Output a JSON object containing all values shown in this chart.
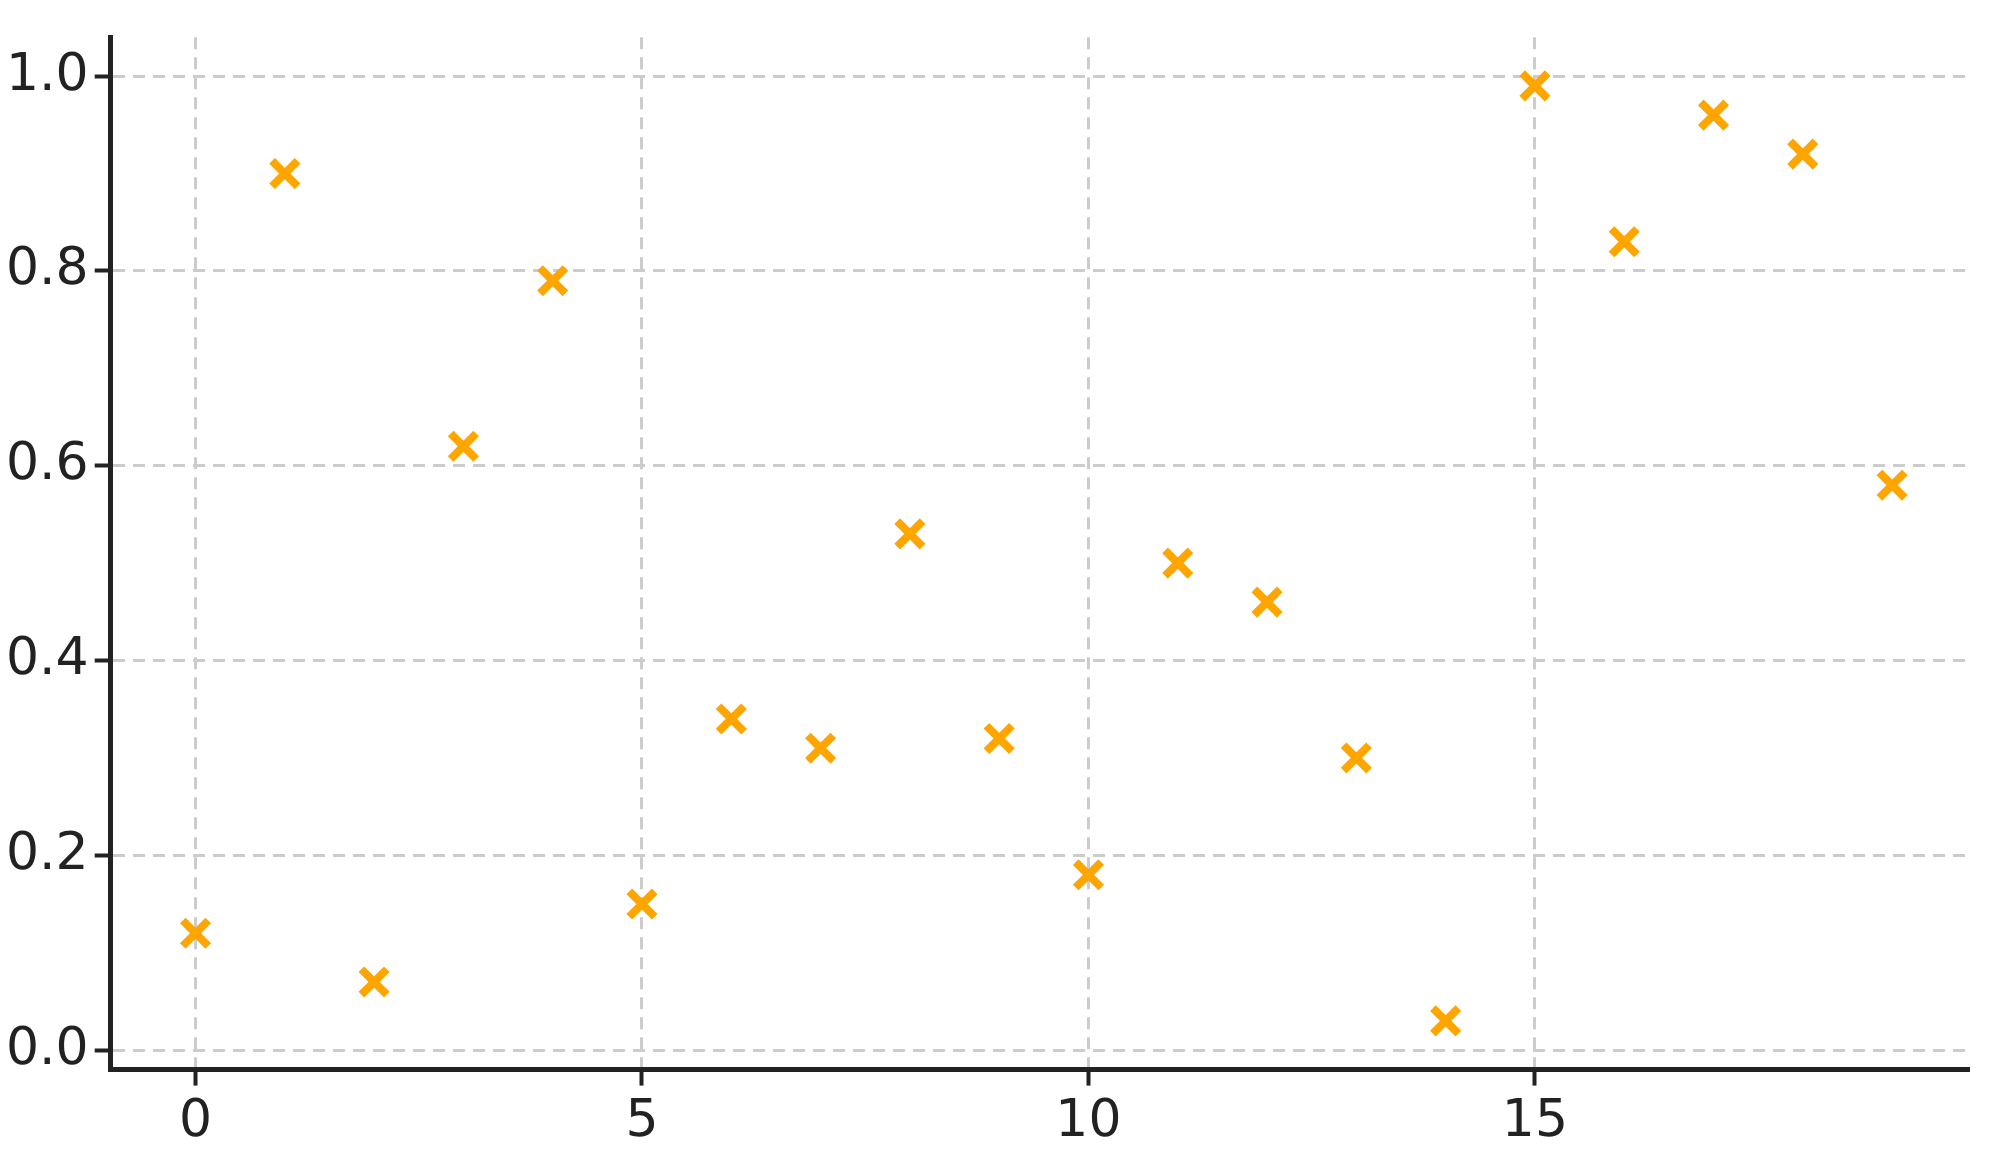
{
  "chart_data": {
    "type": "scatter",
    "x": [
      0,
      1,
      2,
      3,
      4,
      5,
      6,
      7,
      8,
      9,
      10,
      11,
      12,
      13,
      14,
      15,
      16,
      17,
      18,
      19
    ],
    "series": [
      {
        "color": "#ffa500",
        "values": [
          0.12,
          0.9,
          0.07,
          0.62,
          0.79,
          0.15,
          0.34,
          0.31,
          0.53,
          0.32,
          0.18,
          0.5,
          0.46,
          0.3,
          0.03,
          0.99,
          0.83,
          0.96,
          0.92,
          0.58
        ]
      }
    ],
    "xlim": [
      -0.95,
      19.85
    ],
    "ylim": [
      -0.02,
      1.04
    ],
    "xticks": [
      0,
      5,
      10,
      15
    ],
    "yticks": [
      {
        "value": 0,
        "label": "0.0"
      },
      {
        "value": 0.2,
        "label": "0.2"
      },
      {
        "value": 0.4,
        "label": "0.4"
      },
      {
        "value": 0.6,
        "label": "0.6"
      },
      {
        "value": 0.8,
        "label": "0.8"
      },
      {
        "value": 1,
        "label": "1.0"
      }
    ],
    "grid": true,
    "marker": "cross",
    "legend": false
  }
}
